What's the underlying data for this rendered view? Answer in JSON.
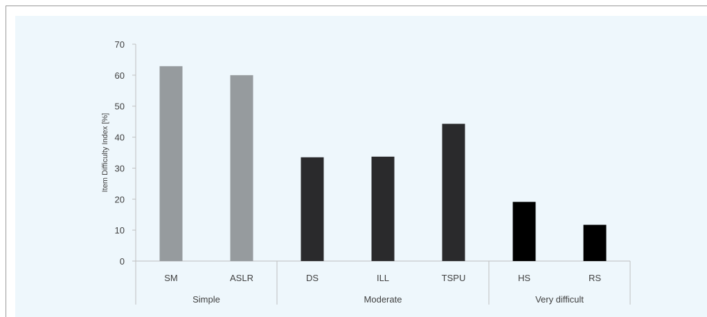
{
  "chart_data": {
    "type": "bar",
    "title": "",
    "xlabel": "",
    "ylabel": "Item Difficulty Index [%]",
    "ylim": [
      0,
      70
    ],
    "yticks": [
      0,
      10,
      20,
      30,
      40,
      50,
      60,
      70
    ],
    "grid": false,
    "legend": "none",
    "categories": [
      "SM",
      "ASLR",
      "DS",
      "ILL",
      "TSPU",
      "HS",
      "RS"
    ],
    "values": [
      62.9,
      60.0,
      33.5,
      33.7,
      44.3,
      19.1,
      11.7
    ],
    "bar_colors": [
      "#969b9e",
      "#969b9e",
      "#2a2a2c",
      "#2a2a2c",
      "#2a2a2c",
      "#000000",
      "#000000"
    ],
    "groups": [
      {
        "label": "Simple",
        "categories": [
          "SM",
          "ASLR"
        ]
      },
      {
        "label": "Moderate",
        "categories": [
          "DS",
          "ILL",
          "TSPU"
        ]
      },
      {
        "label": "Very difficult",
        "categories": [
          "HS",
          "RS"
        ]
      }
    ],
    "background_color": "#eef7fc",
    "axis_color": "#bfbfbf"
  }
}
